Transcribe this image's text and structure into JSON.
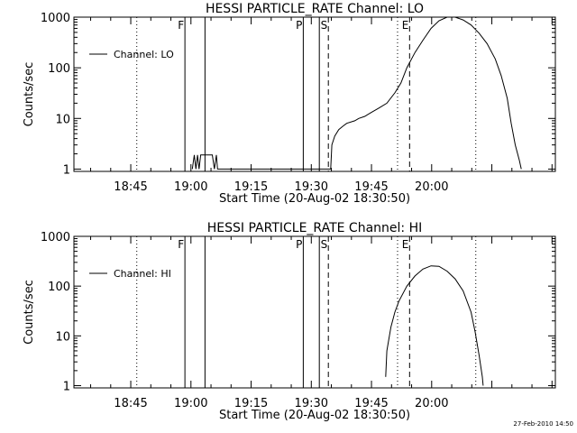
{
  "chart_data": [
    {
      "type": "line",
      "title": "HESSI PARTICLE_RATE Channel: LO",
      "xlabel": "Start Time (20-Aug-02 18:30:50)",
      "ylabel": "Counts/sec",
      "y_scale": "log",
      "xlim_minutes": [
        0,
        120
      ],
      "ylim": [
        0.9,
        1000
      ],
      "x_ticks": [
        "18:45",
        "19:00",
        "19:15",
        "19:30",
        "19:45",
        "20:00"
      ],
      "y_ticks": [
        "1",
        "10",
        "100",
        "1000"
      ],
      "legend": {
        "label": "Channel: LO",
        "placement": "top-left"
      },
      "markers": [
        {
          "label": "F",
          "time": "18:58:30",
          "style": "solid"
        },
        {
          "label": "",
          "time": "19:03:30",
          "style": "solid"
        },
        {
          "label": "P",
          "time": "19:28:00",
          "style": "solid"
        },
        {
          "label": "",
          "time": "19:32:00",
          "style": "solid"
        },
        {
          "label": "S",
          "time": "19:34:15",
          "style": "dashed"
        },
        {
          "label": "E",
          "time": "19:54:30",
          "style": "dashed"
        },
        {
          "label": "",
          "time": "18:46:30",
          "style": "dotted"
        },
        {
          "label": "",
          "time": "19:51:30",
          "style": "dotted"
        },
        {
          "label": "",
          "time": "20:11:00",
          "style": "dotted"
        }
      ],
      "series": [
        {
          "points": [
            [
              29.5,
              1
            ],
            [
              30,
              1.9
            ],
            [
              30.4,
              1
            ],
            [
              30.8,
              1.9
            ],
            [
              31.2,
              1
            ],
            [
              31.6,
              1.9
            ],
            [
              32,
              1.9
            ],
            [
              34.5,
              1.9
            ],
            [
              35,
              1
            ],
            [
              35.5,
              1.9
            ],
            [
              35.8,
              1
            ],
            [
              64,
              1
            ],
            [
              64.3,
              3
            ],
            [
              65,
              4.5
            ],
            [
              66,
              6
            ],
            [
              67,
              7
            ],
            [
              68,
              8
            ],
            [
              70,
              9
            ],
            [
              71,
              10
            ],
            [
              72.5,
              11
            ],
            [
              74,
              13
            ],
            [
              76,
              16
            ],
            [
              78,
              20
            ],
            [
              80,
              32
            ],
            [
              81.5,
              50
            ],
            [
              83,
              100
            ],
            [
              85,
              200
            ],
            [
              87,
              350
            ],
            [
              89,
              600
            ],
            [
              91,
              850
            ],
            [
              93,
              1000
            ],
            [
              95,
              1000
            ],
            [
              97,
              880
            ],
            [
              99,
              700
            ],
            [
              101,
              480
            ],
            [
              103,
              300
            ],
            [
              105,
              150
            ],
            [
              106.5,
              70
            ],
            [
              108,
              25
            ],
            [
              109,
              8
            ],
            [
              110,
              3
            ],
            [
              111,
              1.5
            ],
            [
              111.5,
              1
            ]
          ]
        }
      ]
    },
    {
      "type": "line",
      "title": "HESSI PARTICLE_RATE Channel: HI",
      "xlabel": "Start Time (20-Aug-02 18:30:50)",
      "ylabel": "Counts/sec",
      "y_scale": "log",
      "xlim_minutes": [
        0,
        120
      ],
      "ylim": [
        0.9,
        1000
      ],
      "x_ticks": [
        "18:45",
        "19:00",
        "19:15",
        "19:30",
        "19:45",
        "20:00"
      ],
      "y_ticks": [
        "1",
        "10",
        "100",
        "1000"
      ],
      "legend": {
        "label": "Channel: HI",
        "placement": "top-left"
      },
      "markers": [
        {
          "label": "F",
          "time": "18:58:30",
          "style": "solid"
        },
        {
          "label": "",
          "time": "19:03:30",
          "style": "solid"
        },
        {
          "label": "P",
          "time": "19:28:00",
          "style": "solid"
        },
        {
          "label": "",
          "time": "19:32:00",
          "style": "solid"
        },
        {
          "label": "S",
          "time": "19:34:15",
          "style": "dashed"
        },
        {
          "label": "E",
          "time": "19:54:30",
          "style": "dashed"
        },
        {
          "label": "",
          "time": "18:46:30",
          "style": "dotted"
        },
        {
          "label": "",
          "time": "19:51:30",
          "style": "dotted"
        },
        {
          "label": "",
          "time": "20:11:00",
          "style": "dotted"
        }
      ],
      "series": [
        {
          "points": [
            [
              77.7,
              1.5
            ],
            [
              78,
              5
            ],
            [
              79,
              15
            ],
            [
              80,
              30
            ],
            [
              81,
              50
            ],
            [
              83,
              100
            ],
            [
              85,
              160
            ],
            [
              87,
              220
            ],
            [
              89,
              255
            ],
            [
              91,
              250
            ],
            [
              93,
              200
            ],
            [
              95,
              140
            ],
            [
              97,
              80
            ],
            [
              99,
              30
            ],
            [
              100,
              12
            ],
            [
              101,
              4
            ],
            [
              101.8,
              1.5
            ],
            [
              102,
              1
            ]
          ]
        }
      ]
    }
  ],
  "footer": {
    "stamp": "27-Feb-2010 14:50"
  }
}
